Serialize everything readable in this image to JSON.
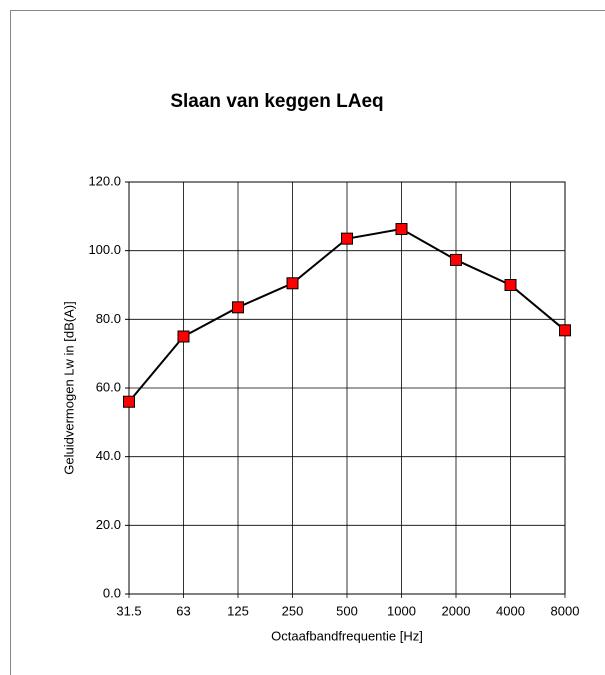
{
  "chart_data": {
    "type": "line",
    "title": "Slaan van keggen LAeq",
    "xlabel": "Octaafbandfrequentie [Hz]",
    "ylabel": "Geluidvermogen Lw in  [dB(A)]",
    "categories": [
      "31.5",
      "63",
      "125",
      "250",
      "500",
      "1000",
      "2000",
      "4000",
      "8000"
    ],
    "series": [
      {
        "name": "LAeq",
        "color": "#ff0000",
        "line_color": "#000000",
        "values": [
          56,
          75,
          83.5,
          90.5,
          103.5,
          106.3,
          97.3,
          90,
          76.8
        ]
      }
    ],
    "ylim": [
      0,
      120
    ],
    "yticks": [
      {
        "value": 0,
        "label": "0.0"
      },
      {
        "value": 20,
        "label": "20.0"
      },
      {
        "value": 40,
        "label": "40.0"
      },
      {
        "value": 60,
        "label": "60.0"
      },
      {
        "value": 80,
        "label": "80.0"
      },
      {
        "value": 100,
        "label": "100.0"
      },
      {
        "value": 120,
        "label": "120.0"
      }
    ],
    "grid": true
  }
}
